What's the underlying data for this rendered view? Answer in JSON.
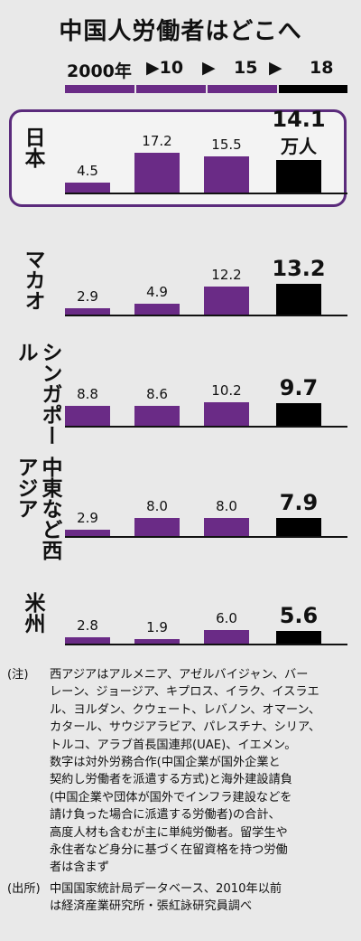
{
  "title": "中国人労働者はどこへ",
  "legend": {
    "labels": [
      "2000年",
      "▶10",
      "▶",
      "15",
      "▶",
      "18"
    ],
    "colors": [
      "#6a2b86",
      "#6a2b86",
      "#6a2b86",
      "#000000"
    ]
  },
  "colors": {
    "purple": "#6a2b86",
    "black": "#000000",
    "frame": "#5b2b7c"
  },
  "chart_data": [
    {
      "type": "bar",
      "region": "日本",
      "categories": [
        "2000",
        "2010",
        "2015",
        "2018"
      ],
      "values": [
        4.5,
        17.2,
        15.5,
        14.1
      ],
      "value_labels": [
        "4.5",
        "17.2",
        "15.5",
        "14.1"
      ],
      "unit": "万人",
      "highlighted": true
    },
    {
      "type": "bar",
      "region": "マカオ",
      "categories": [
        "2000",
        "2010",
        "2015",
        "2018"
      ],
      "values": [
        2.9,
        4.9,
        12.2,
        13.2
      ],
      "value_labels": [
        "2.9",
        "4.9",
        "12.2",
        "13.2"
      ]
    },
    {
      "type": "bar",
      "region": "シンガポール",
      "region_lines": [
        "シンガ",
        "ポール"
      ],
      "categories": [
        "2000",
        "2010",
        "2015",
        "2018"
      ],
      "values": [
        8.8,
        8.6,
        10.2,
        9.7
      ],
      "value_labels": [
        "8.8",
        "8.6",
        "10.2",
        "9.7"
      ]
    },
    {
      "type": "bar",
      "region": "中東など西アジア",
      "region_lines": [
        "中東など",
        "西アジア"
      ],
      "categories": [
        "2000",
        "2010",
        "2015",
        "2018"
      ],
      "values": [
        2.9,
        8.0,
        8.0,
        7.9
      ],
      "value_labels": [
        "2.9",
        "8.0",
        "8.0",
        "7.9"
      ]
    },
    {
      "type": "bar",
      "region": "米州",
      "categories": [
        "2000",
        "2010",
        "2015",
        "2018"
      ],
      "values": [
        2.8,
        1.9,
        6.0,
        5.6
      ],
      "value_labels": [
        "2.8",
        "1.9",
        "6.0",
        "5.6"
      ]
    }
  ],
  "notes": {
    "note_head": "(注)",
    "note_lines": [
      "西アジアはアルメニア、アゼルバイジャン、バー",
      "レーン、ジョージア、キプロス、イラク、イスラエ",
      "ル、ヨルダン、クウェート、レバノン、オマーン、",
      "カタール、サウジアラビア、パレスチナ、シリア、",
      "トルコ、アラブ首長国連邦(UAE)、イエメン。",
      "数字は対外労務合作(中国企業が国外企業と",
      "契約し労働者を派遣する方式)と海外建設請負",
      "(中国企業や団体が国外でインフラ建設などを",
      "請け負った場合に派遣する労働者)の合計、",
      "高度人材も含むが主に単純労働者。留学生や",
      "永住者など身分に基づく在留資格を持つ労働",
      "者は含まず"
    ],
    "source_head": "(出所)",
    "source_lines": [
      "中国国家統計局データベース、2010年以前",
      "は経済産業研究所・張紅詠研究員調べ"
    ]
  }
}
